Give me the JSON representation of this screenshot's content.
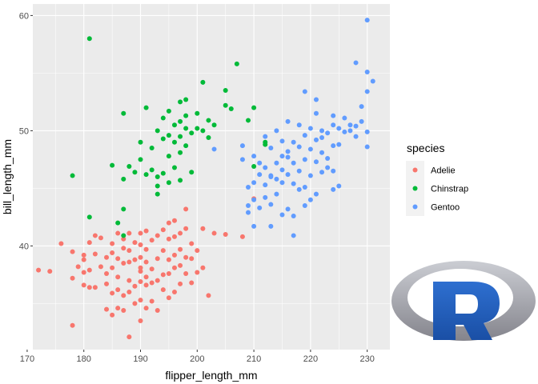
{
  "chart_data": {
    "type": "scatter",
    "xlabel": "flipper_length_mm",
    "ylabel": "bill_length_mm",
    "xlim": [
      171,
      234
    ],
    "ylim": [
      31,
      61
    ],
    "x_ticks": [
      "170",
      "180",
      "190",
      "200",
      "210",
      "220",
      "230"
    ],
    "y_ticks": [
      "40",
      "50",
      "60"
    ],
    "grid": true,
    "legend_title": "species",
    "legend_position": "right",
    "series": [
      {
        "name": "Adelie",
        "color": "#F8766D",
        "points": [
          [
            172,
            37.9
          ],
          [
            174,
            37.8
          ],
          [
            176,
            40.2
          ],
          [
            178,
            33.1
          ],
          [
            178,
            37.2
          ],
          [
            178,
            39.5
          ],
          [
            179,
            38.2
          ],
          [
            180,
            36.6
          ],
          [
            180,
            37.7
          ],
          [
            180,
            38.8
          ],
          [
            180,
            39.2
          ],
          [
            181,
            36.4
          ],
          [
            181,
            37.9
          ],
          [
            181,
            40.3
          ],
          [
            182,
            36.4
          ],
          [
            182,
            39.3
          ],
          [
            182,
            40.9
          ],
          [
            183,
            38.2
          ],
          [
            183,
            40.7
          ],
          [
            184,
            34.5
          ],
          [
            184,
            36.7
          ],
          [
            184,
            37.6
          ],
          [
            184,
            39.0
          ],
          [
            185,
            34.0
          ],
          [
            185,
            35.9
          ],
          [
            185,
            38.1
          ],
          [
            185,
            39.4
          ],
          [
            185,
            40.2
          ],
          [
            186,
            34.6
          ],
          [
            186,
            36.2
          ],
          [
            186,
            37.3
          ],
          [
            186,
            38.9
          ],
          [
            186,
            41.1
          ],
          [
            187,
            34.4
          ],
          [
            187,
            35.7
          ],
          [
            187,
            38.5
          ],
          [
            187,
            39.8
          ],
          [
            187,
            40.6
          ],
          [
            188,
            32.1
          ],
          [
            188,
            36.0
          ],
          [
            188,
            37.0
          ],
          [
            188,
            38.6
          ],
          [
            188,
            39.6
          ],
          [
            188,
            41.1
          ],
          [
            189,
            35.0
          ],
          [
            189,
            36.5
          ],
          [
            189,
            38.8
          ],
          [
            189,
            40.3
          ],
          [
            190,
            33.5
          ],
          [
            190,
            35.3
          ],
          [
            190,
            36.9
          ],
          [
            190,
            37.8
          ],
          [
            190,
            38.1
          ],
          [
            190,
            39.0
          ],
          [
            190,
            40.1
          ],
          [
            190,
            41.1
          ],
          [
            191,
            34.6
          ],
          [
            191,
            36.6
          ],
          [
            191,
            37.3
          ],
          [
            191,
            38.6
          ],
          [
            191,
            39.7
          ],
          [
            191,
            41.3
          ],
          [
            192,
            35.2
          ],
          [
            192,
            36.8
          ],
          [
            192,
            38.0
          ],
          [
            192,
            40.5
          ],
          [
            193,
            34.4
          ],
          [
            193,
            37.0
          ],
          [
            193,
            38.9
          ],
          [
            193,
            40.9
          ],
          [
            194,
            36.2
          ],
          [
            194,
            37.5
          ],
          [
            194,
            39.6
          ],
          [
            194,
            41.4
          ],
          [
            195,
            35.5
          ],
          [
            195,
            37.6
          ],
          [
            195,
            38.8
          ],
          [
            195,
            40.6
          ],
          [
            195,
            42.0
          ],
          [
            196,
            36.0
          ],
          [
            196,
            38.1
          ],
          [
            196,
            39.2
          ],
          [
            196,
            40.8
          ],
          [
            196,
            42.2
          ],
          [
            197,
            36.7
          ],
          [
            197,
            38.3
          ],
          [
            197,
            39.7
          ],
          [
            197,
            41.1
          ],
          [
            198,
            37.6
          ],
          [
            198,
            39.0
          ],
          [
            198,
            41.5
          ],
          [
            198,
            43.2
          ],
          [
            199,
            36.8
          ],
          [
            199,
            38.9
          ],
          [
            199,
            40.2
          ],
          [
            200,
            37.7
          ],
          [
            200,
            39.6
          ],
          [
            201,
            38.1
          ],
          [
            201,
            41.5
          ],
          [
            202,
            35.7
          ],
          [
            203,
            41.1
          ],
          [
            205,
            41.0
          ],
          [
            208,
            40.8
          ],
          [
            210,
            44.1
          ]
        ]
      },
      {
        "name": "Chinstrap",
        "color": "#00BA38",
        "points": [
          [
            178,
            46.1
          ],
          [
            181,
            58.0
          ],
          [
            181,
            42.5
          ],
          [
            185,
            47.0
          ],
          [
            186,
            42.0
          ],
          [
            187,
            51.5
          ],
          [
            187,
            45.8
          ],
          [
            187,
            43.2
          ],
          [
            187,
            40.9
          ],
          [
            188,
            46.9
          ],
          [
            189,
            46.4
          ],
          [
            190,
            49.0
          ],
          [
            190,
            47.5
          ],
          [
            191,
            52.0
          ],
          [
            191,
            46.2
          ],
          [
            192,
            48.5
          ],
          [
            192,
            46.6
          ],
          [
            193,
            50.0
          ],
          [
            193,
            46.0
          ],
          [
            193,
            44.5
          ],
          [
            193,
            45.2
          ],
          [
            194,
            51.1
          ],
          [
            194,
            49.3
          ],
          [
            194,
            46.3
          ],
          [
            195,
            51.7
          ],
          [
            195,
            49.6
          ],
          [
            195,
            47.8
          ],
          [
            195,
            45.5
          ],
          [
            196,
            50.5
          ],
          [
            196,
            49.0
          ],
          [
            196,
            46.8
          ],
          [
            197,
            52.5
          ],
          [
            197,
            50.8
          ],
          [
            197,
            49.5
          ],
          [
            197,
            48.1
          ],
          [
            197,
            45.7
          ],
          [
            198,
            51.3
          ],
          [
            198,
            50.2
          ],
          [
            198,
            48.7
          ],
          [
            198,
            52.7
          ],
          [
            199,
            49.8
          ],
          [
            199,
            46.4
          ],
          [
            200,
            51.5
          ],
          [
            200,
            50.2
          ],
          [
            201,
            54.2
          ],
          [
            201,
            50.0
          ],
          [
            202,
            50.9
          ],
          [
            202,
            49.4
          ],
          [
            203,
            50.5
          ],
          [
            205,
            53.5
          ],
          [
            205,
            52.2
          ],
          [
            206,
            51.9
          ],
          [
            207,
            55.8
          ],
          [
            209,
            50.9
          ],
          [
            210,
            52.0
          ],
          [
            212,
            49.0
          ],
          [
            212,
            48.8
          ],
          [
            210,
            46.9
          ]
        ]
      },
      {
        "name": "Gentoo",
        "color": "#619CFF",
        "points": [
          [
            203,
            48.4
          ],
          [
            208,
            48.7
          ],
          [
            208,
            47.5
          ],
          [
            209,
            45.1
          ],
          [
            209,
            43.5
          ],
          [
            209,
            42.9
          ],
          [
            210,
            45.5
          ],
          [
            210,
            44.0
          ],
          [
            210,
            41.7
          ],
          [
            210,
            47.8
          ],
          [
            211,
            47.2
          ],
          [
            211,
            46.2
          ],
          [
            211,
            43.3
          ],
          [
            212,
            49.5
          ],
          [
            212,
            45.3
          ],
          [
            212,
            44.2
          ],
          [
            212,
            46.8
          ],
          [
            213,
            48.5
          ],
          [
            213,
            46.0
          ],
          [
            213,
            43.6
          ],
          [
            213,
            41.7
          ],
          [
            214,
            50.0
          ],
          [
            214,
            47.2
          ],
          [
            214,
            45.8
          ],
          [
            214,
            44.5
          ],
          [
            215,
            49.1
          ],
          [
            215,
            46.6
          ],
          [
            215,
            45.5
          ],
          [
            215,
            42.7
          ],
          [
            215,
            47.8
          ],
          [
            216,
            50.8
          ],
          [
            216,
            48.2
          ],
          [
            216,
            46.2
          ],
          [
            216,
            43.2
          ],
          [
            217,
            49.0
          ],
          [
            217,
            47.2
          ],
          [
            217,
            45.4
          ],
          [
            217,
            42.6
          ],
          [
            218,
            50.5
          ],
          [
            218,
            48.6
          ],
          [
            218,
            46.5
          ],
          [
            218,
            44.9
          ],
          [
            219,
            49.6
          ],
          [
            219,
            47.5
          ],
          [
            219,
            45.1
          ],
          [
            219,
            43.5
          ],
          [
            220,
            50.2
          ],
          [
            220,
            48.4
          ],
          [
            220,
            46.1
          ],
          [
            220,
            44.0
          ],
          [
            221,
            51.5
          ],
          [
            221,
            49.2
          ],
          [
            221,
            47.3
          ],
          [
            221,
            44.5
          ],
          [
            222,
            50.0
          ],
          [
            222,
            48.1
          ],
          [
            222,
            46.4
          ],
          [
            222,
            49.4
          ],
          [
            223,
            49.8
          ],
          [
            223,
            47.6
          ],
          [
            223,
            46.8
          ],
          [
            224,
            50.5
          ],
          [
            224,
            48.7
          ],
          [
            224,
            46.5
          ],
          [
            225,
            50.2
          ],
          [
            225,
            48.8
          ],
          [
            225,
            45.2
          ],
          [
            226,
            49.9
          ],
          [
            226,
            51.1
          ],
          [
            227,
            50.0
          ],
          [
            228,
            50.4
          ],
          [
            228,
            49.5
          ],
          [
            228,
            55.9
          ],
          [
            229,
            52.1
          ],
          [
            229,
            50.8
          ],
          [
            230,
            59.6
          ],
          [
            230,
            55.1
          ],
          [
            230,
            53.4
          ],
          [
            230,
            49.9
          ],
          [
            230,
            48.6
          ],
          [
            231,
            54.3
          ],
          [
            224,
            44.9
          ],
          [
            219,
            53.4
          ],
          [
            221,
            52.7
          ],
          [
            217,
            40.9
          ],
          [
            224,
            51.3
          ],
          [
            227,
            50.5
          ],
          [
            213,
            46.1
          ],
          [
            216,
            47.7
          ]
        ]
      }
    ]
  }
}
